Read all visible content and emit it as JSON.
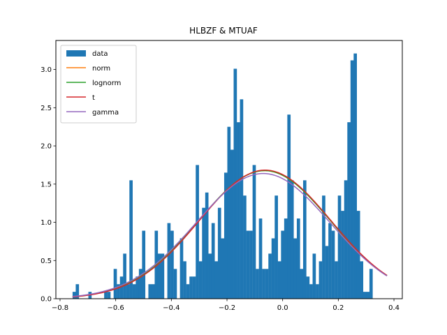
{
  "chart_data": {
    "type": "bar",
    "title": "HLBZF & MTUAF",
    "xlabel": "",
    "ylabel": "",
    "xlim": [
      -0.815,
      0.43
    ],
    "ylim": [
      0,
      3.38
    ],
    "xticks": [
      -0.8,
      -0.6,
      -0.4,
      -0.2,
      0.0,
      0.2,
      0.4
    ],
    "xtick_labels": [
      "−0.8",
      "−0.6",
      "−0.4",
      "−0.2",
      "0.0",
      "0.2",
      "0.4"
    ],
    "yticks": [
      0.0,
      0.5,
      1.0,
      1.5,
      2.0,
      2.5,
      3.0
    ],
    "ytick_labels": [
      "0.0",
      "0.5",
      "1.0",
      "1.5",
      "2.0",
      "2.5",
      "3.0"
    ],
    "grid": false,
    "legend_position": "top-left",
    "legend": [
      "data",
      "norm",
      "lognorm",
      "t",
      "gamma"
    ],
    "histogram": {
      "name": "data",
      "color": "#1f77b4",
      "bin_start": -0.755,
      "bin_width": 0.01135,
      "values": [
        0.09,
        0.19,
        0.0,
        0.0,
        0.0,
        0.09,
        0.0,
        0.0,
        0.0,
        0.0,
        0.09,
        0.09,
        0.0,
        0.39,
        0.19,
        0.29,
        0.59,
        0.19,
        1.55,
        0.19,
        0.29,
        0.39,
        0.89,
        0.0,
        0.19,
        0.19,
        0.89,
        0.59,
        0.59,
        0.0,
        0.99,
        0.89,
        0.39,
        0.0,
        0.79,
        0.49,
        0.19,
        0.29,
        0.29,
        1.75,
        0.49,
        1.19,
        1.39,
        0.59,
        0.99,
        0.49,
        1.19,
        0.79,
        1.65,
        2.25,
        1.95,
        3.01,
        2.31,
        2.61,
        1.35,
        0.89,
        0.89,
        1.75,
        0.39,
        1.05,
        0.39,
        0.39,
        0.59,
        0.79,
        1.35,
        0.49,
        0.89,
        1.05,
        2.41,
        1.55,
        0.79,
        1.05,
        0.39,
        1.55,
        0.29,
        0.19,
        0.59,
        0.19,
        0.49,
        1.35,
        0.69,
        0.99,
        0.89,
        0.49,
        1.35,
        1.15,
        1.55,
        2.31,
        3.12,
        3.21,
        1.15,
        0.49,
        0.09,
        0.09,
        0.39
      ]
    },
    "series": [
      {
        "name": "norm",
        "color": "#ff7f0e",
        "mu": -0.065,
        "sigma": 0.238,
        "scale": 1.0
      },
      {
        "name": "lognorm",
        "color": "#2ca02c",
        "mu": -0.065,
        "sigma": 0.238,
        "scale": 1.0
      },
      {
        "name": "t",
        "color": "#d62728",
        "mu": -0.063,
        "sigma": 0.237,
        "scale": 1.0
      },
      {
        "name": "gamma",
        "color": "#9467bd",
        "mu": -0.07,
        "sigma": 0.241,
        "scale": 0.99
      }
    ],
    "curve_range": [
      -0.755,
      0.375
    ]
  }
}
